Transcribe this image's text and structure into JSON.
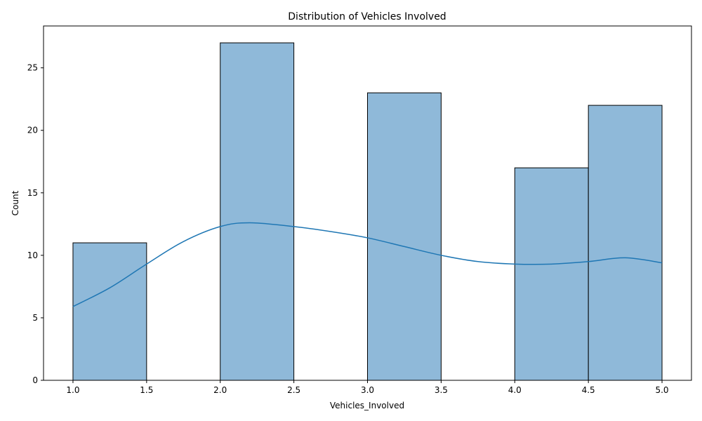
{
  "chart_data": {
    "type": "bar",
    "subtype": "histogram-with-kde",
    "title": "Distribution of Vehicles Involved",
    "xlabel": "Vehicles_Involved",
    "ylabel": "Count",
    "xlim": [
      0.8,
      5.2
    ],
    "ylim": [
      0,
      28.35
    ],
    "xticks": [
      1.0,
      1.5,
      2.0,
      2.5,
      3.0,
      3.5,
      4.0,
      4.5,
      5.0
    ],
    "xtick_labels": [
      "1.0",
      "1.5",
      "2.0",
      "2.5",
      "3.0",
      "3.5",
      "4.0",
      "4.5",
      "5.0"
    ],
    "yticks": [
      0,
      5,
      10,
      15,
      20,
      25
    ],
    "ytick_labels": [
      "0",
      "5",
      "10",
      "15",
      "20",
      "25"
    ],
    "grid": false,
    "bins": [
      {
        "x0": 1.0,
        "x1": 1.5,
        "count": 11
      },
      {
        "x0": 1.5,
        "x1": 2.0,
        "count": 0
      },
      {
        "x0": 2.0,
        "x1": 2.5,
        "count": 27
      },
      {
        "x0": 2.5,
        "x1": 3.0,
        "count": 0
      },
      {
        "x0": 3.0,
        "x1": 3.5,
        "count": 23
      },
      {
        "x0": 3.5,
        "x1": 4.0,
        "count": 0
      },
      {
        "x0": 4.0,
        "x1": 4.5,
        "count": 17
      },
      {
        "x0": 4.5,
        "x1": 5.0,
        "count": 22
      }
    ],
    "kde": {
      "x": [
        1.0,
        1.25,
        1.5,
        1.75,
        2.0,
        2.2,
        2.5,
        2.75,
        3.0,
        3.25,
        3.5,
        3.75,
        4.0,
        4.25,
        4.5,
        4.75,
        5.0
      ],
      "y": [
        5.9,
        7.4,
        9.3,
        11.1,
        12.3,
        12.6,
        12.3,
        11.9,
        11.4,
        10.7,
        10.0,
        9.5,
        9.3,
        9.3,
        9.5,
        9.8,
        9.4
      ]
    },
    "colors": {
      "bar_fill": "#8fb9d9",
      "bar_edge": "#000000",
      "kde_line": "#1f77b4"
    }
  }
}
